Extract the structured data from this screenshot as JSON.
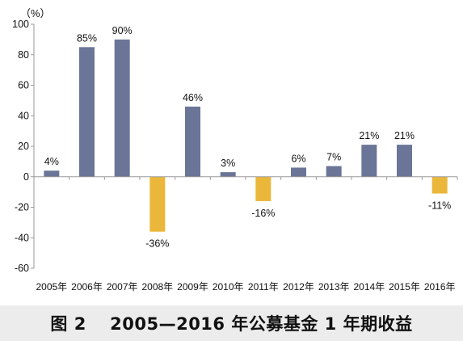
{
  "chart_data": {
    "type": "bar",
    "y_unit_label": "（%）",
    "categories": [
      "2005年",
      "2006年",
      "2007年",
      "2008年",
      "2009年",
      "2010年",
      "2011年",
      "2012年",
      "2013年",
      "2014年",
      "2015年",
      "2016年"
    ],
    "values": [
      4,
      85,
      90,
      -36,
      46,
      3,
      -16,
      6,
      7,
      21,
      21,
      -11
    ],
    "data_labels": [
      "4%",
      "85%",
      "90%",
      "-36%",
      "46%",
      "3%",
      "-16%",
      "6%",
      "7%",
      "21%",
      "21%",
      "-11%"
    ],
    "ylim": [
      -60,
      100
    ],
    "yticks": [
      100,
      80,
      60,
      40,
      20,
      0,
      -20,
      -40,
      -60
    ],
    "grid": false,
    "colors": {
      "positive": "#6b7597",
      "negative": "#eab73a",
      "axis": "#999999",
      "text": "#111111"
    }
  },
  "caption": "图 2　 2005—2016 年公募基金 1 年期收益"
}
